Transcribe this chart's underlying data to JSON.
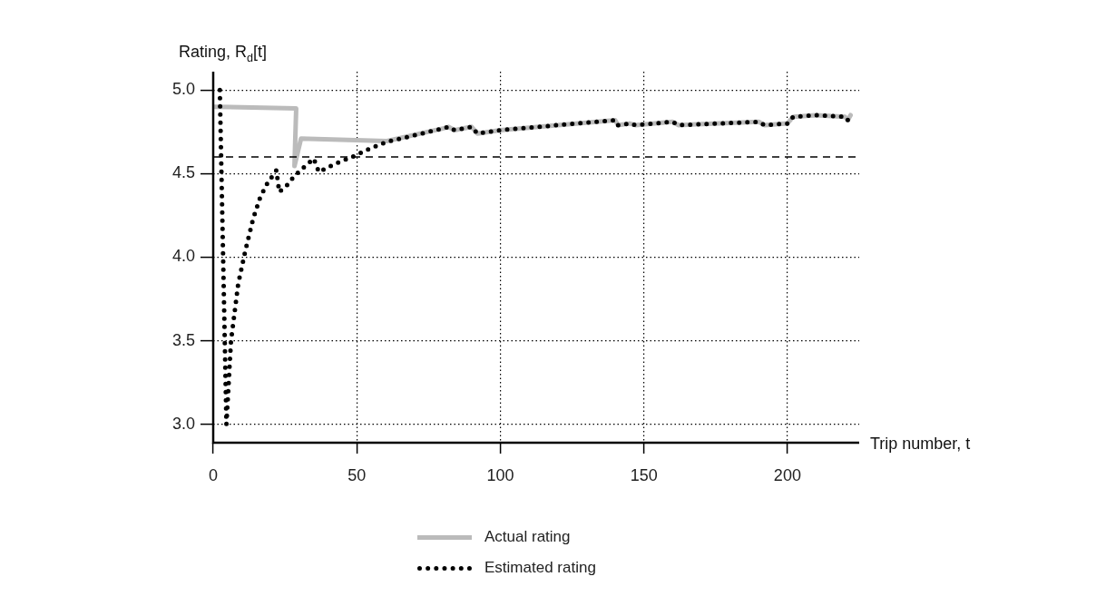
{
  "chart_data": {
    "type": "line",
    "xlabel": "Trip number, t",
    "ylabel": "Rating, R$_{d}$[t]",
    "xlim": [
      0,
      225
    ],
    "xticks": [
      0,
      50,
      100,
      150,
      200
    ],
    "ylim": [
      2.89,
      5.11
    ],
    "yticks": [
      {
        "value": 3.0,
        "label": "3.0"
      },
      {
        "value": 3.5,
        "label": "3.5"
      },
      {
        "value": 4.0,
        "label": "4.0"
      },
      {
        "value": 4.5,
        "label": "4.5"
      },
      {
        "value": 5.0,
        "label": "5.0"
      }
    ],
    "grid": true,
    "legend": "bottom",
    "marker": "none",
    "ref_lines": [
      {
        "axis": "y",
        "value": 4.6,
        "color": "#000000",
        "line_style": "dashed"
      }
    ],
    "series": [
      {
        "name": "Actual rating",
        "color": "#bbbbbb",
        "line_style": "solid",
        "x": [
          0,
          28.9,
          28.3,
          30.6,
          60.5,
          80,
          82,
          84,
          90,
          92,
          100,
          120,
          140,
          141,
          145,
          147,
          160,
          162,
          190,
          192,
          200,
          202,
          210,
          220,
          221,
          222
        ],
        "values": [
          4.9,
          4.89,
          4.545,
          4.71,
          4.695,
          4.77,
          4.78,
          4.76,
          4.78,
          4.74,
          4.76,
          4.79,
          4.82,
          4.79,
          4.8,
          4.79,
          4.81,
          4.79,
          4.81,
          4.79,
          4.8,
          4.84,
          4.85,
          4.84,
          4.82,
          4.85
        ]
      },
      {
        "name": "Estimated rating",
        "color": "#000000",
        "line_style": "dotted",
        "x": [
          2.3,
          4.6,
          6.2,
          8.7,
          11.2,
          13.9,
          16.4,
          18.8,
          22,
          23,
          25.7,
          28,
          30.4,
          35,
          36.8,
          42.6,
          48.4,
          54.7,
          60.5,
          80,
          82,
          84,
          90,
          92,
          100,
          120,
          140,
          141,
          145,
          147,
          160,
          162,
          190,
          192,
          200,
          202,
          210,
          220,
          221,
          222
        ],
        "values": [
          5.0,
          3.0,
          3.5,
          3.84,
          4.04,
          4.23,
          4.36,
          4.44,
          4.52,
          4.39,
          4.43,
          4.48,
          4.52,
          4.59,
          4.51,
          4.56,
          4.6,
          4.65,
          4.69,
          4.77,
          4.78,
          4.76,
          4.78,
          4.74,
          4.76,
          4.79,
          4.82,
          4.79,
          4.8,
          4.79,
          4.81,
          4.79,
          4.81,
          4.79,
          4.8,
          4.84,
          4.85,
          4.84,
          4.82,
          4.85
        ]
      }
    ]
  }
}
